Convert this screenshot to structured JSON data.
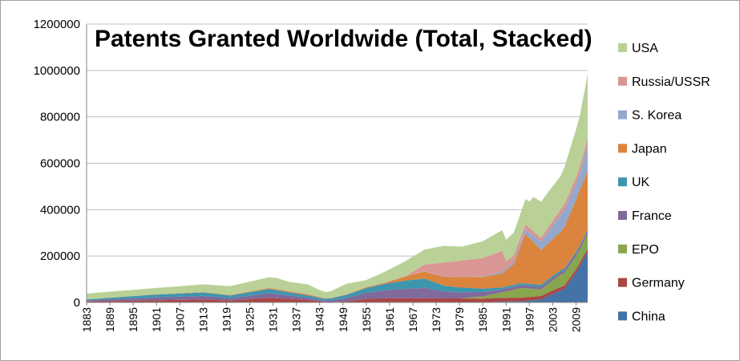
{
  "chart_data": {
    "type": "area",
    "stacked": true,
    "title": "Patents Granted Worldwide (Total, Stacked)",
    "xlabel": "",
    "ylabel": "",
    "ylim": [
      0,
      1200000
    ],
    "yticks": [
      0,
      200000,
      400000,
      600000,
      800000,
      1000000,
      1200000
    ],
    "ytick_labels": [
      "0",
      "200000",
      "400000",
      "600000",
      "800000",
      "1000000",
      "1200000"
    ],
    "xlim": [
      1883,
      2012
    ],
    "xticks": [
      1883,
      1889,
      1895,
      1901,
      1907,
      1913,
      1919,
      1925,
      1931,
      1937,
      1943,
      1949,
      1955,
      1961,
      1967,
      1973,
      1979,
      1985,
      1991,
      1997,
      2003,
      2009
    ],
    "grid": "horizontal",
    "legend_position": "right",
    "series": [
      {
        "name": "China",
        "color": "#4572a7",
        "x": [
          1883,
          1984,
          1985,
          1990,
          1995,
          2000,
          2003,
          2006,
          2009,
          2012
        ],
        "values": [
          0,
          0,
          0,
          4000,
          5000,
          13000,
          37000,
          58000,
          128000,
          217000
        ]
      },
      {
        "name": "Germany",
        "color": "#aa4643",
        "x": [
          1883,
          1900,
          1913,
          1920,
          1930,
          1940,
          1944,
          1946,
          1950,
          1955,
          1960,
          1970,
          1980,
          1990,
          2000,
          2010,
          2012
        ],
        "values": [
          4000,
          9000,
          13000,
          8000,
          20000,
          11000,
          3000,
          1000,
          5000,
          15000,
          18000,
          18000,
          17000,
          16000,
          15000,
          14000,
          14000
        ]
      },
      {
        "name": "EPO",
        "color": "#89a54e",
        "x": [
          1883,
          1979,
          1980,
          1985,
          1990,
          1995,
          2000,
          2005,
          2010,
          2012
        ],
        "values": [
          0,
          0,
          2000,
          10000,
          24000,
          42000,
          28000,
          54000,
          58000,
          66000
        ]
      },
      {
        "name": "France",
        "color": "#80699b",
        "x": [
          1883,
          1900,
          1913,
          1920,
          1930,
          1940,
          1944,
          1950,
          1955,
          1960,
          1965,
          1970,
          1975,
          1980,
          1990,
          2000,
          2012
        ],
        "values": [
          5000,
          12000,
          15000,
          10000,
          20000,
          9000,
          5000,
          14000,
          26000,
          35000,
          40000,
          45000,
          30000,
          25000,
          12000,
          11000,
          11000
        ]
      },
      {
        "name": "UK",
        "color": "#3d96ae",
        "x": [
          1883,
          1900,
          1913,
          1920,
          1930,
          1940,
          1945,
          1950,
          1960,
          1965,
          1970,
          1975,
          1980,
          1990,
          2000,
          2012
        ],
        "values": [
          4000,
          12000,
          15000,
          12000,
          18000,
          10000,
          8000,
          14000,
          28000,
          36000,
          40000,
          25000,
          20000,
          9000,
          9000,
          7000
        ]
      },
      {
        "name": "Japan",
        "color": "#db843d",
        "x": [
          1883,
          1900,
          1920,
          1930,
          1940,
          1943,
          1946,
          1950,
          1960,
          1970,
          1980,
          1985,
          1990,
          1993,
          1996,
          2000,
          2005,
          2010,
          2012
        ],
        "values": [
          0,
          1000,
          2000,
          4000,
          5000,
          3000,
          1000,
          2000,
          5000,
          30000,
          47000,
          50000,
          60000,
          90000,
          215000,
          150000,
          165000,
          240000,
          250000
        ]
      },
      {
        "name": "S. Korea",
        "color": "#92a8cd",
        "x": [
          1883,
          1980,
          1985,
          1990,
          1995,
          2000,
          2005,
          2010,
          2012
        ],
        "values": [
          0,
          1000,
          2000,
          7000,
          13000,
          35000,
          73000,
          68000,
          112000
        ]
      },
      {
        "name": "Russia/USSR",
        "color": "#d99694",
        "x": [
          1883,
          1965,
          1970,
          1975,
          1980,
          1985,
          1990,
          1991,
          1995,
          2000,
          2005,
          2010,
          2012
        ],
        "values": [
          0,
          0,
          30000,
          60000,
          70000,
          80000,
          90000,
          30000,
          25000,
          17000,
          23000,
          30000,
          32000
        ]
      },
      {
        "name": "USA",
        "color": "#b9d196",
        "x": [
          1883,
          1890,
          1900,
          1913,
          1920,
          1932,
          1935,
          1940,
          1943,
          1945,
          1950,
          1955,
          1960,
          1965,
          1970,
          1975,
          1980,
          1985,
          1990,
          1994,
          1997,
          1998,
          2000,
          2005,
          2010,
          2012
        ],
        "values": [
          25000,
          26000,
          27000,
          33000,
          38000,
          48000,
          40000,
          42000,
          30000,
          26000,
          45000,
          30000,
          47000,
          65000,
          64000,
          72000,
          60000,
          72000,
          90000,
          101000,
          112000,
          147000,
          157000,
          144000,
          220000,
          275000
        ]
      }
    ]
  }
}
